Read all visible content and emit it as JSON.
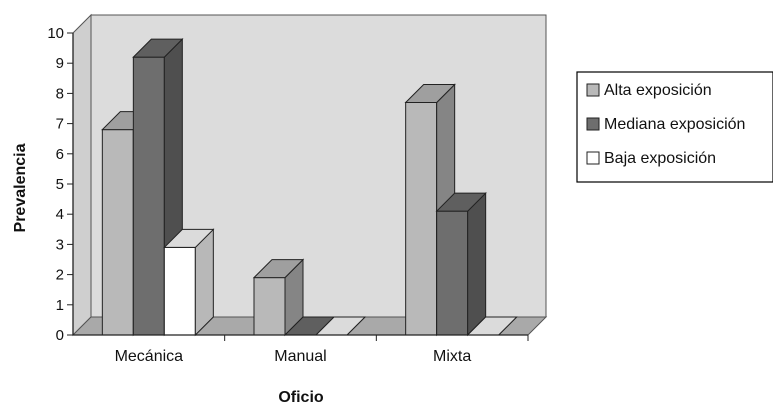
{
  "chart_data": {
    "type": "bar",
    "title": "",
    "xlabel": "Oficio",
    "ylabel": "Prevalencia",
    "ylim": [
      0,
      10
    ],
    "yticks": [
      "0",
      "1",
      "2",
      "3",
      "4",
      "5",
      "6",
      "7",
      "8",
      "9",
      "10"
    ],
    "categories": [
      "Mecánica",
      "Manual",
      "Mixta"
    ],
    "series": [
      {
        "name": "Alta exposición",
        "values": [
          6.8,
          1.9,
          7.7
        ],
        "color": "#b9b9b9"
      },
      {
        "name": "Mediana exposición",
        "values": [
          9.2,
          0.0,
          4.1
        ],
        "color": "#6e6e6e"
      },
      {
        "name": "Baja exposición",
        "values": [
          2.9,
          0.0,
          0.0
        ],
        "color": "#ffffff"
      }
    ],
    "grid": false,
    "legend_position": "right",
    "style": "3d-clustered-column",
    "plot_background": "#dcdcdc",
    "floor_color": "#a9a9a9"
  }
}
